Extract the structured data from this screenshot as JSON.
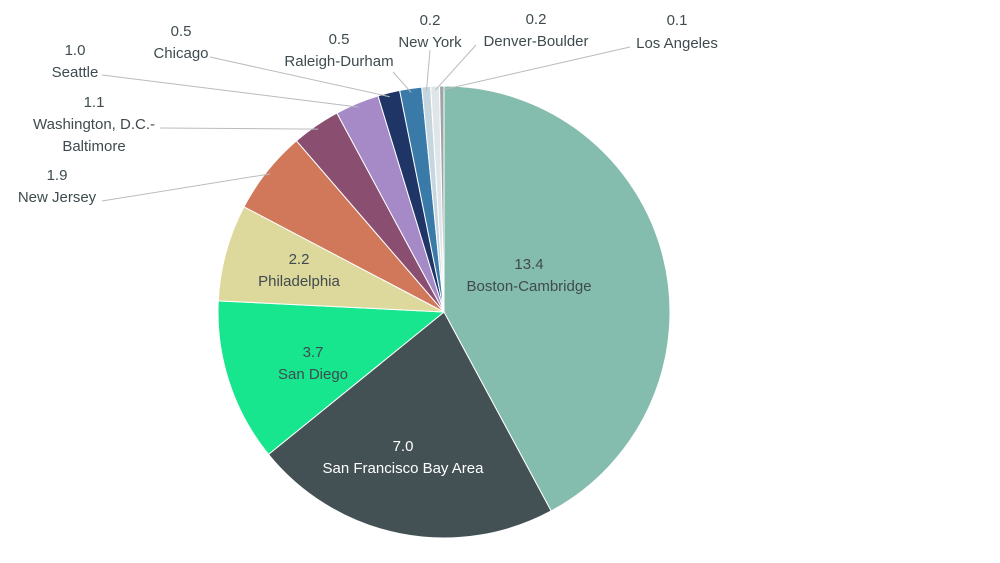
{
  "chart_data": {
    "type": "pie",
    "title": "",
    "slices": [
      {
        "label": "Boston-Cambridge",
        "value": 13.4,
        "color": "#84bcad"
      },
      {
        "label": "San Francisco Bay Area",
        "value": 7.0,
        "color": "#435154"
      },
      {
        "label": "San Diego",
        "value": 3.7,
        "color": "#18e68e"
      },
      {
        "label": "Philadelphia",
        "value": 2.2,
        "color": "#ddd89b"
      },
      {
        "label": "New Jersey",
        "value": 1.9,
        "color": "#d2785a"
      },
      {
        "label": "Washington, D.C.-Baltimore",
        "value": 1.1,
        "color": "#8a4e70"
      },
      {
        "label": "Seattle",
        "value": 1.0,
        "color": "#a68ac7"
      },
      {
        "label": "Chicago",
        "value": 0.5,
        "color": "#1f3566"
      },
      {
        "label": "Raleigh-Durham",
        "value": 0.5,
        "color": "#3a7aa8"
      },
      {
        "label": "New York",
        "value": 0.2,
        "color": "#c5d6de"
      },
      {
        "label": "Denver-Boulder",
        "value": 0.2,
        "color": "#dfe6ea"
      },
      {
        "label": "Los Angeles",
        "value": 0.1,
        "color": "#9ea4a6"
      }
    ]
  }
}
